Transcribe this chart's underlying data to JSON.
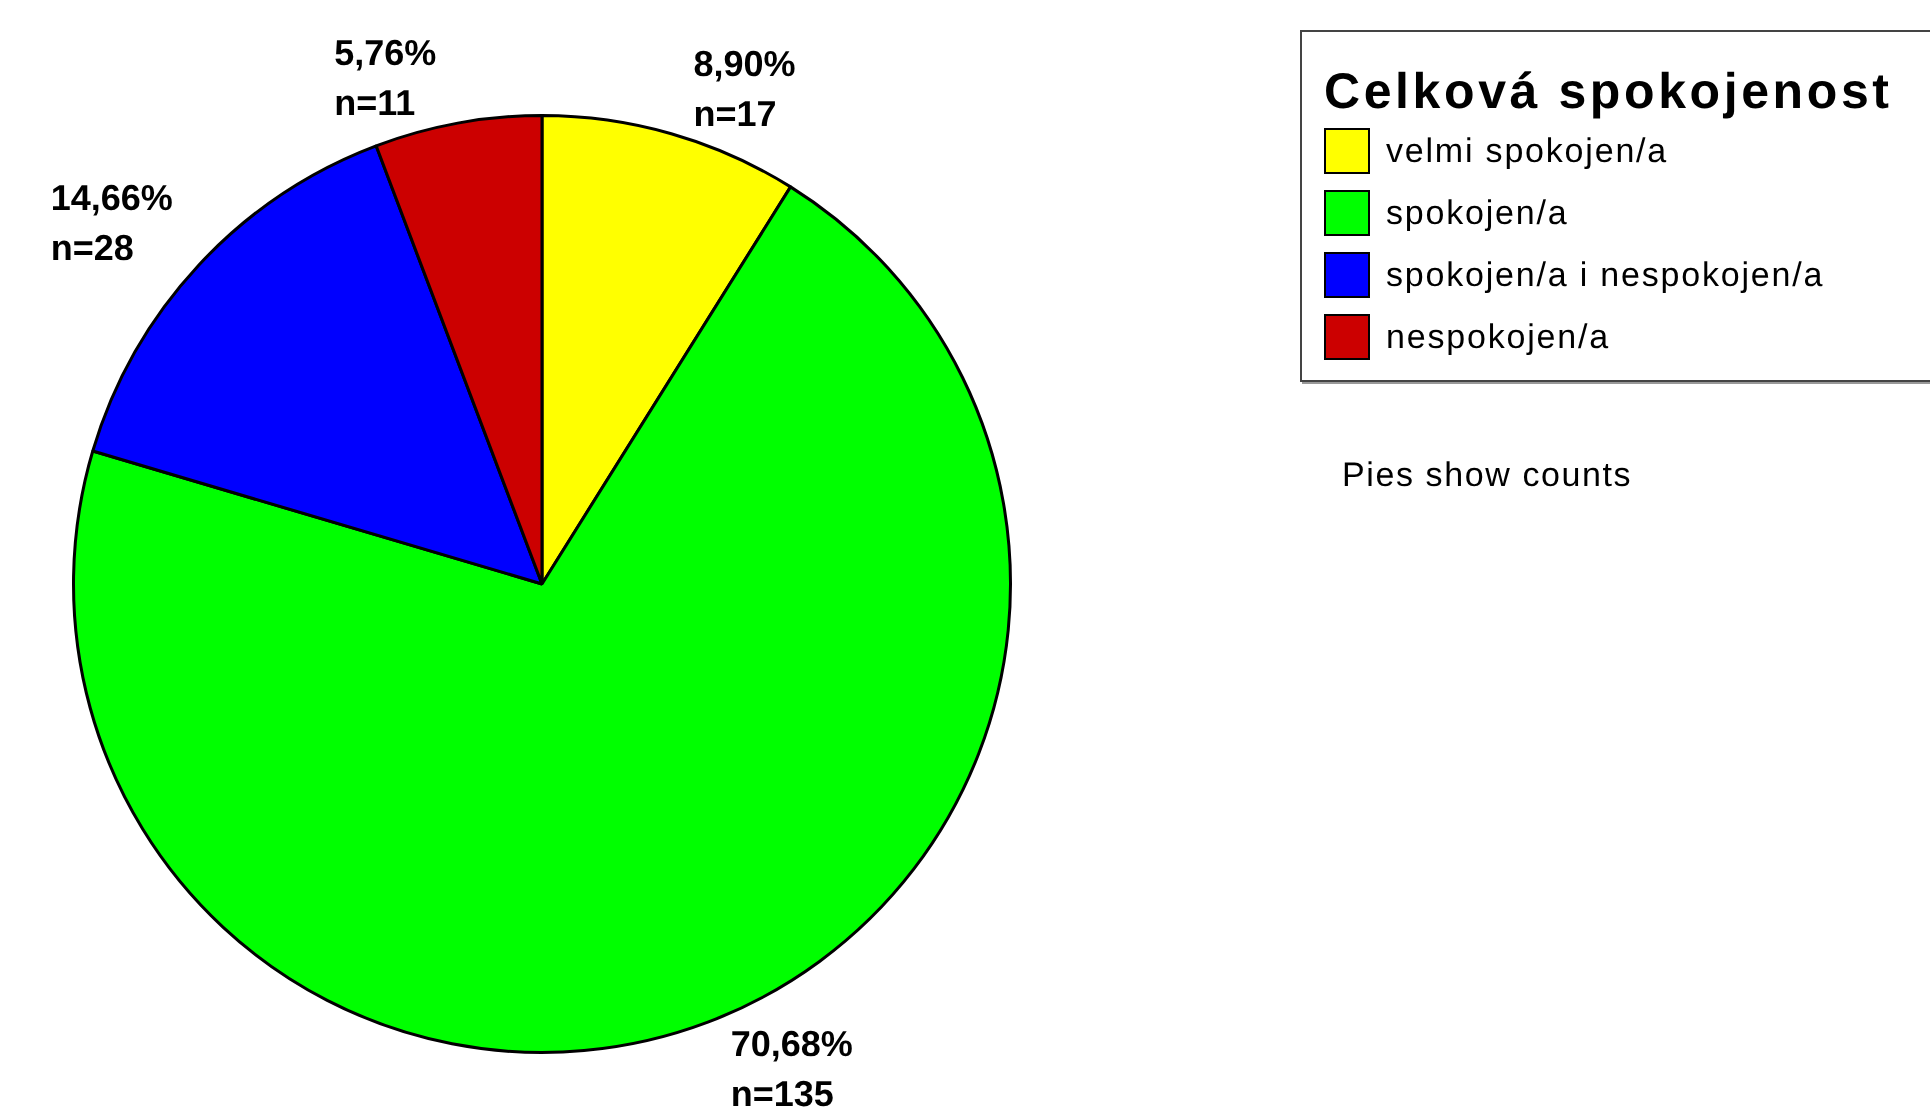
{
  "chart_data": {
    "type": "pie",
    "categories": [
      "velmi spokojen/a",
      "spokojen/a",
      "spokojen/a i nespokojen/a",
      "nespokojen/a"
    ],
    "values": [
      17,
      135,
      28,
      11
    ],
    "colors": [
      "#ffff00",
      "#00ff00",
      "#0000ff",
      "#cc0000"
    ],
    "value_labels": [
      "8,90%\nn=17",
      "70,68%\nn=135",
      "14,66%\nn=28",
      "5,76%\nn=11"
    ],
    "legend_title": "Celková spokojenost",
    "legend": "top right",
    "annotations": [
      "Pies show counts"
    ]
  }
}
